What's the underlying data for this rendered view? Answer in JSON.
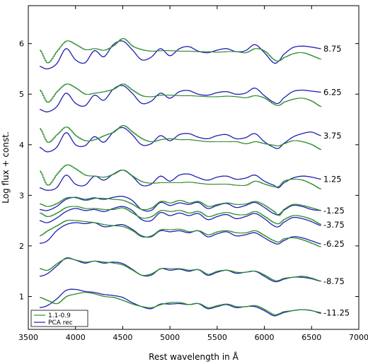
{
  "chart_data": {
    "type": "line",
    "xlabel": "Rest wavelength in Å",
    "ylabel": "Log flux + const.",
    "xlim": [
      3500,
      7000
    ],
    "ylim": [
      0.35,
      6.75
    ],
    "xticks": [
      "3500",
      "4000",
      "4500",
      "5000",
      "5500",
      "6000",
      "6500",
      "7000"
    ],
    "yticks": [
      "1",
      "2",
      "3",
      "4",
      "5",
      "6"
    ],
    "legend": {
      "position": "bottom-left",
      "entries": [
        {
          "label": "1.1-0.9",
          "color": "#2e8b2e"
        },
        {
          "label": "PCA rec",
          "color": "#1f1fb4"
        }
      ]
    },
    "wavelength_grid": [
      3620,
      3700,
      3800,
      3900,
      4000,
      4100,
      4200,
      4300,
      4400,
      4500,
      4600,
      4700,
      4800,
      4900,
      5000,
      5100,
      5200,
      5300,
      5400,
      5500,
      5600,
      5700,
      5800,
      5900,
      6000,
      6100,
      6150,
      6200,
      6300,
      6400,
      6500,
      6600
    ],
    "series": [
      {
        "phase_label": "8.75",
        "data": [
          5.87,
          5.62,
          5.85,
          6.05,
          5.98,
          5.88,
          5.9,
          5.87,
          5.96,
          6.1,
          5.95,
          5.88,
          5.85,
          5.86,
          5.86,
          5.85,
          5.85,
          5.84,
          5.84,
          5.83,
          5.84,
          5.84,
          5.82,
          5.9,
          5.85,
          5.68,
          5.66,
          5.72,
          5.8,
          5.82,
          5.76,
          5.69
        ],
        "pca": [
          5.55,
          5.5,
          5.6,
          5.9,
          5.68,
          5.62,
          5.86,
          5.74,
          5.98,
          6.05,
          5.88,
          5.68,
          5.73,
          5.9,
          5.76,
          5.9,
          5.94,
          5.85,
          5.82,
          5.87,
          5.9,
          5.84,
          5.86,
          5.98,
          5.82,
          5.62,
          5.65,
          5.78,
          5.92,
          5.95,
          5.93,
          5.9
        ]
      },
      {
        "phase_label": "6.25",
        "data": [
          5.08,
          4.84,
          5.05,
          5.2,
          5.12,
          5.0,
          5.02,
          5.05,
          5.1,
          5.2,
          5.08,
          4.97,
          4.95,
          4.98,
          4.98,
          4.97,
          4.97,
          4.96,
          4.95,
          4.95,
          4.96,
          4.95,
          4.93,
          4.97,
          4.92,
          4.8,
          4.78,
          4.84,
          4.9,
          4.92,
          4.86,
          4.75
        ],
        "pca": [
          4.7,
          4.65,
          4.75,
          5.02,
          4.82,
          4.77,
          4.98,
          4.88,
          5.1,
          5.17,
          5.02,
          4.82,
          4.86,
          5.02,
          4.92,
          5.05,
          5.07,
          5.0,
          4.98,
          5.03,
          5.05,
          5.0,
          5.02,
          5.12,
          4.97,
          4.84,
          4.82,
          4.92,
          5.05,
          5.08,
          5.06,
          5.04
        ]
      },
      {
        "phase_label": "3.75",
        "data": [
          4.32,
          4.05,
          4.2,
          4.35,
          4.18,
          4.08,
          4.1,
          4.18,
          4.25,
          4.38,
          4.25,
          4.12,
          4.06,
          4.1,
          4.12,
          4.1,
          4.1,
          4.08,
          4.06,
          4.06,
          4.06,
          4.06,
          4.02,
          4.06,
          4.02,
          3.99,
          3.98,
          4.02,
          4.08,
          4.06,
          4.0,
          3.9
        ],
        "pca": [
          3.95,
          3.86,
          3.95,
          4.24,
          4.0,
          3.98,
          4.16,
          4.05,
          4.25,
          4.34,
          4.2,
          4.0,
          4.02,
          4.18,
          4.08,
          4.2,
          4.22,
          4.15,
          4.12,
          4.18,
          4.2,
          4.12,
          4.14,
          4.22,
          4.06,
          3.95,
          3.93,
          4.02,
          4.15,
          4.22,
          4.25,
          4.18
        ]
      },
      {
        "phase_label": "1.25",
        "data": [
          3.48,
          3.2,
          3.42,
          3.6,
          3.52,
          3.4,
          3.38,
          3.36,
          3.42,
          3.5,
          3.38,
          3.27,
          3.24,
          3.25,
          3.25,
          3.25,
          3.26,
          3.24,
          3.22,
          3.22,
          3.22,
          3.2,
          3.2,
          3.28,
          3.22,
          3.17,
          3.18,
          3.28,
          3.32,
          3.3,
          3.22,
          3.12
        ],
        "pca": [
          3.15,
          3.1,
          3.15,
          3.4,
          3.22,
          3.2,
          3.38,
          3.3,
          3.42,
          3.5,
          3.38,
          3.2,
          3.22,
          3.38,
          3.28,
          3.4,
          3.42,
          3.35,
          3.3,
          3.36,
          3.38,
          3.32,
          3.34,
          3.4,
          3.28,
          3.2,
          3.15,
          3.24,
          3.34,
          3.38,
          3.36,
          3.32
        ]
      },
      {
        "phase_label": "-1.25",
        "data": [
          2.83,
          2.78,
          2.84,
          2.95,
          2.95,
          2.9,
          2.94,
          2.94,
          2.92,
          2.9,
          2.82,
          2.72,
          2.75,
          2.88,
          2.85,
          2.9,
          2.85,
          2.88,
          2.78,
          2.82,
          2.85,
          2.82,
          2.83,
          2.88,
          2.8,
          2.68,
          2.6,
          2.72,
          2.82,
          2.8,
          2.75,
          2.7
        ],
        "pca": [
          2.72,
          2.7,
          2.78,
          2.92,
          2.96,
          2.92,
          2.95,
          2.92,
          2.96,
          2.98,
          2.9,
          2.72,
          2.7,
          2.86,
          2.8,
          2.85,
          2.82,
          2.86,
          2.74,
          2.8,
          2.84,
          2.76,
          2.8,
          2.86,
          2.76,
          2.64,
          2.62,
          2.7,
          2.8,
          2.78,
          2.72,
          2.7
        ]
      },
      {
        "phase_label": "-3.75",
        "data": [
          2.65,
          2.58,
          2.65,
          2.76,
          2.78,
          2.74,
          2.74,
          2.72,
          2.72,
          2.75,
          2.65,
          2.55,
          2.58,
          2.7,
          2.68,
          2.7,
          2.65,
          2.68,
          2.58,
          2.63,
          2.66,
          2.62,
          2.62,
          2.68,
          2.58,
          2.46,
          2.44,
          2.52,
          2.6,
          2.58,
          2.52,
          2.42
        ],
        "pca": [
          2.5,
          2.46,
          2.55,
          2.68,
          2.74,
          2.7,
          2.72,
          2.68,
          2.74,
          2.78,
          2.7,
          2.52,
          2.5,
          2.66,
          2.6,
          2.65,
          2.6,
          2.64,
          2.52,
          2.58,
          2.62,
          2.54,
          2.58,
          2.64,
          2.54,
          2.4,
          2.38,
          2.46,
          2.56,
          2.54,
          2.48,
          2.4
        ]
      },
      {
        "phase_label": "-6.25",
        "data": [
          2.2,
          2.3,
          2.4,
          2.5,
          2.5,
          2.48,
          2.46,
          2.42,
          2.4,
          2.38,
          2.3,
          2.18,
          2.2,
          2.32,
          2.32,
          2.33,
          2.28,
          2.3,
          2.22,
          2.28,
          2.3,
          2.26,
          2.26,
          2.3,
          2.2,
          2.1,
          2.08,
          2.14,
          2.16,
          2.12,
          2.05,
          1.98
        ],
        "pca": [
          2.05,
          2.1,
          2.3,
          2.42,
          2.46,
          2.44,
          2.46,
          2.38,
          2.4,
          2.42,
          2.33,
          2.2,
          2.18,
          2.3,
          2.28,
          2.3,
          2.26,
          2.3,
          2.18,
          2.24,
          2.28,
          2.2,
          2.22,
          2.26,
          2.16,
          2.06,
          2.04,
          2.1,
          2.18,
          2.16,
          2.1,
          2.04
        ]
      },
      {
        "phase_label": "-8.75",
        "data": [
          1.55,
          1.52,
          1.65,
          1.75,
          1.72,
          1.68,
          1.7,
          1.68,
          1.66,
          1.62,
          1.52,
          1.42,
          1.45,
          1.55,
          1.55,
          1.55,
          1.52,
          1.53,
          1.44,
          1.5,
          1.52,
          1.48,
          1.48,
          1.5,
          1.42,
          1.32,
          1.32,
          1.36,
          1.38,
          1.4,
          1.36,
          1.3
        ],
        "pca": [
          1.4,
          1.45,
          1.6,
          1.76,
          1.72,
          1.66,
          1.7,
          1.66,
          1.68,
          1.65,
          1.54,
          1.42,
          1.42,
          1.55,
          1.52,
          1.54,
          1.5,
          1.53,
          1.42,
          1.48,
          1.52,
          1.46,
          1.48,
          1.5,
          1.4,
          1.3,
          1.3,
          1.34,
          1.38,
          1.38,
          1.35,
          1.3
        ]
      },
      {
        "phase_label": "-11.25",
        "data": [
          0.98,
          0.92,
          0.86,
          1.0,
          1.05,
          1.08,
          1.05,
          1.0,
          0.98,
          0.92,
          0.85,
          0.8,
          0.78,
          0.84,
          0.88,
          0.88,
          0.84,
          0.86,
          0.78,
          0.82,
          0.85,
          0.8,
          0.8,
          0.82,
          0.74,
          0.64,
          0.66,
          0.7,
          0.72,
          0.74,
          0.72,
          0.66
        ],
        "pca": [
          0.78,
          0.82,
          0.95,
          1.12,
          1.14,
          1.1,
          1.08,
          1.04,
          1.02,
          0.98,
          0.88,
          0.8,
          0.76,
          0.85,
          0.85,
          0.86,
          0.84,
          0.86,
          0.76,
          0.8,
          0.84,
          0.78,
          0.8,
          0.8,
          0.72,
          0.62,
          0.64,
          0.68,
          0.72,
          0.74,
          0.72,
          0.68
        ]
      }
    ]
  }
}
